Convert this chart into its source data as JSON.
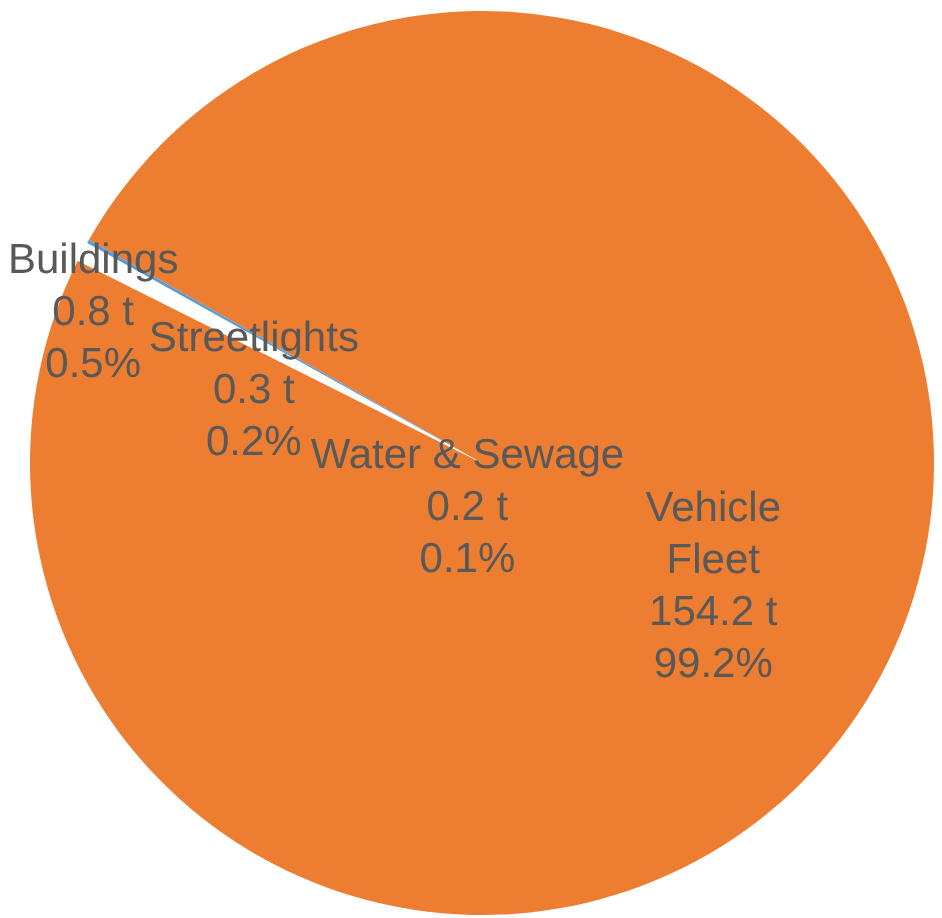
{
  "chart_data": {
    "type": "pie",
    "categories": [
      "Vehicle Fleet",
      "Buildings",
      "Streetlights",
      "Water & Sewage"
    ],
    "values": [
      154.2,
      0.8,
      0.3,
      0.2
    ],
    "colors": [
      "#ed7d31",
      "#ffffff",
      "#ffffff",
      "#5b9bd5"
    ],
    "value_labels": [
      "154.2 t\n99.2%",
      "0.8 t\n0.5%",
      "0.3 t\n0.2%",
      "0.2 t\n0.1%"
    ]
  }
}
